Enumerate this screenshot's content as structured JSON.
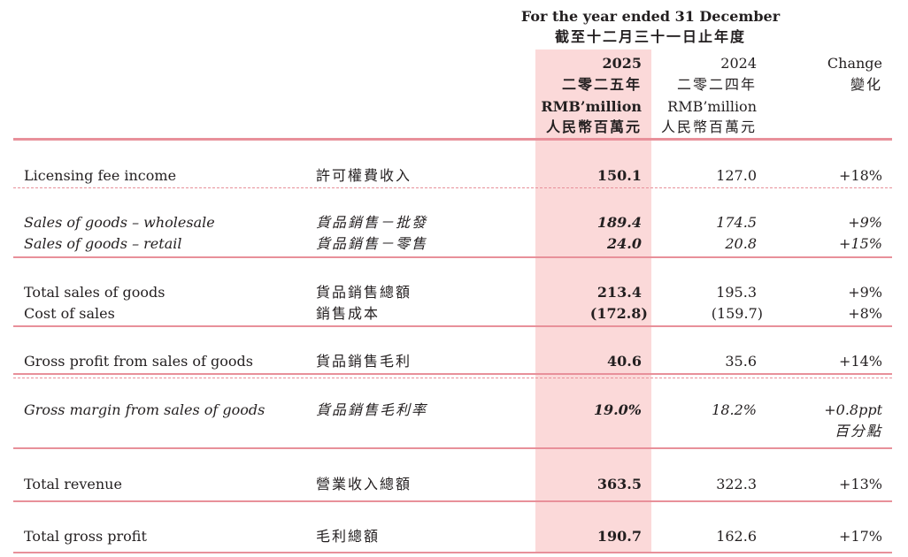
{
  "header": {
    "period_en": "For the year ended 31 December",
    "period_zh": "截至十二月三十一日止年度",
    "col_2025": {
      "year": "2025",
      "year_zh": "二零二五年",
      "unit": "RMB’million",
      "unit_zh": "人民幣百萬元"
    },
    "col_2024": {
      "year": "2024",
      "year_zh": "二零二四年",
      "unit": "RMB’million",
      "unit_zh": "人民幣百萬元"
    },
    "col_change": {
      "label": "Change",
      "label_zh": "變化"
    }
  },
  "rows": [
    {
      "en": "Licensing fee income",
      "zh": "許可權費收入",
      "v2025": "150.1",
      "v2024": "127.0",
      "change": "+18%"
    },
    {
      "en": "Sales of goods – wholesale",
      "zh": "貨品銷售－批發",
      "v2025": "189.4",
      "v2024": "174.5",
      "change": "+9%"
    },
    {
      "en": "Sales of goods – retail",
      "zh": "貨品銷售－零售",
      "v2025": "24.0",
      "v2024": "20.8",
      "change": "+15%"
    },
    {
      "en": "Total sales of goods",
      "zh": "貨品銷售總額",
      "v2025": "213.4",
      "v2024": "195.3",
      "change": "+9%"
    },
    {
      "en": "Cost of sales",
      "zh": "銷售成本",
      "v2025": "(172.8)",
      "v2024": "(159.7)",
      "change": "+8%"
    },
    {
      "en": "Gross profit from sales of goods",
      "zh": "貨品銷售毛利",
      "v2025": "40.6",
      "v2024": "35.6",
      "change": "+14%"
    },
    {
      "en": "Gross margin from sales of goods",
      "zh": "貨品銷售毛利率",
      "v2025": "19.0%",
      "v2024": "18.2%",
      "change": "+0.8ppt",
      "change_zh": "百分點"
    },
    {
      "en": "Total revenue",
      "zh": "營業收入總額",
      "v2025": "363.5",
      "v2024": "322.3",
      "change": "+13%"
    },
    {
      "en": "Total gross profit",
      "zh": "毛利總額",
      "v2025": "190.7",
      "v2024": "162.6",
      "change": "+17%"
    }
  ],
  "colors": {
    "accent_line": "#e8909a",
    "highlight": "#fbd9d9"
  }
}
